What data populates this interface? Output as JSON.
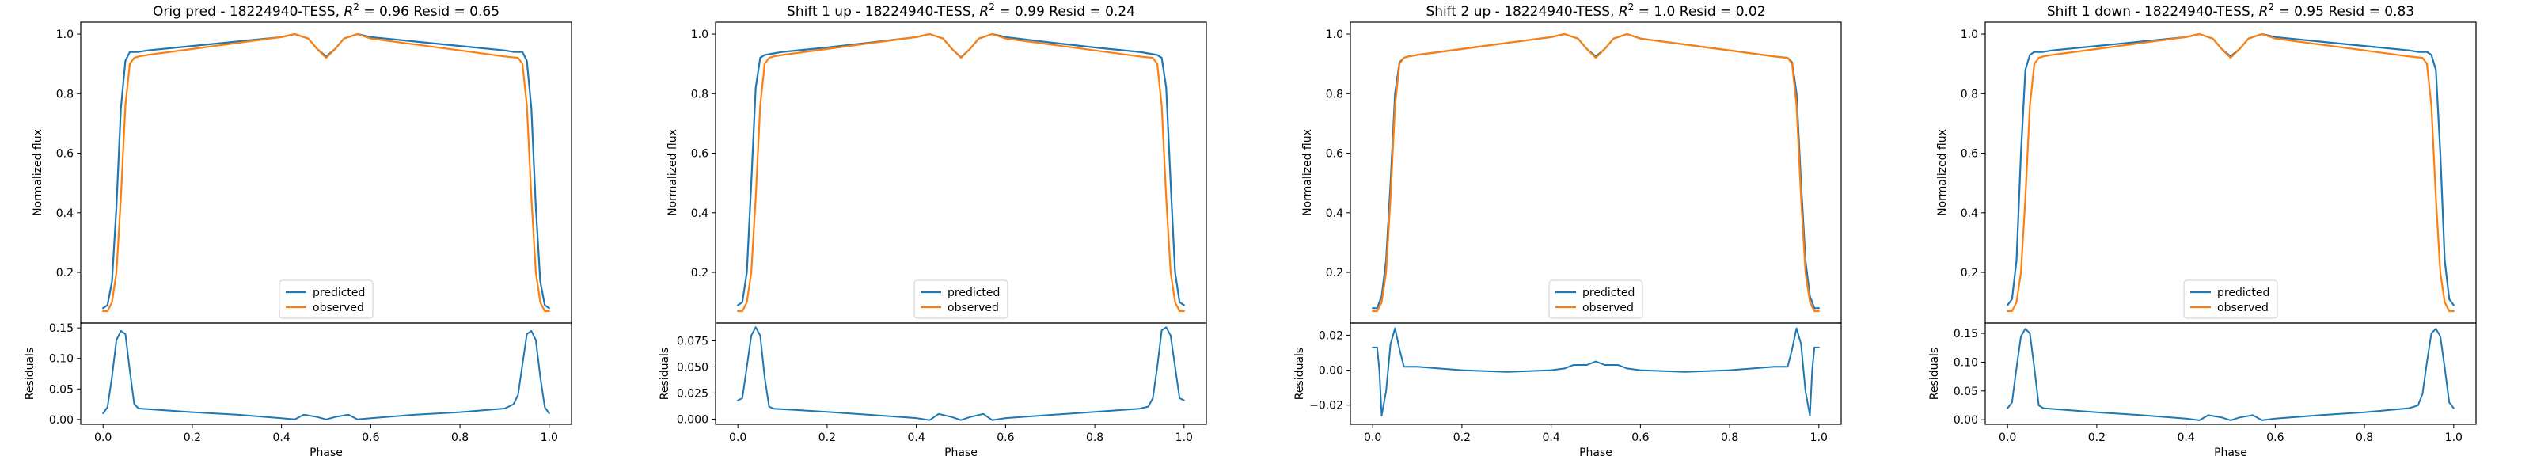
{
  "figure": {
    "panel_count": 4
  },
  "colors": {
    "predicted": "#1f77b4",
    "observed": "#ff7f0e",
    "background": "#ffffff",
    "axes": "#000000"
  },
  "chart_data": [
    {
      "type": "line",
      "title": "Orig pred - 18224940-TESS, $R^2 = 0.96$ Resid = 0.65",
      "title_parts": {
        "prefix": "Orig pred - 18224940-TESS, ",
        "r": "R",
        "sup": "2",
        "suffix": " = 0.96 Resid = 0.65"
      },
      "xlabel": "Phase",
      "ylabel_top": "Normalized flux",
      "ylabel_bottom": "Residuals",
      "xlim": [
        -0.05,
        1.05
      ],
      "ylim_top": [
        0.03,
        1.04
      ],
      "ylim_bottom": [
        -0.008,
        0.158
      ],
      "xticks": [
        "0.0",
        "0.2",
        "0.4",
        "0.6",
        "0.8",
        "1.0"
      ],
      "yticks_top": [
        "0.2",
        "0.4",
        "0.6",
        "0.8",
        "1.0"
      ],
      "yticks_bottom": [
        "0.00",
        "0.05",
        "0.10",
        "0.15"
      ],
      "legend": {
        "position": "lower center",
        "entries": [
          "predicted",
          "observed"
        ]
      },
      "series": [
        {
          "name": "predicted",
          "x": [
            0.0,
            0.01,
            0.02,
            0.03,
            0.04,
            0.05,
            0.06,
            0.08,
            0.1,
            0.2,
            0.3,
            0.4,
            0.43,
            0.46,
            0.48,
            0.5,
            0.52,
            0.54,
            0.57,
            0.6,
            0.7,
            0.8,
            0.9,
            0.92,
            0.94,
            0.95,
            0.96,
            0.97,
            0.98,
            0.99,
            1.0
          ],
          "y": [
            0.08,
            0.09,
            0.17,
            0.42,
            0.75,
            0.91,
            0.94,
            0.94,
            0.945,
            0.96,
            0.975,
            0.99,
            1.0,
            0.985,
            0.95,
            0.925,
            0.95,
            0.985,
            1.0,
            0.99,
            0.975,
            0.96,
            0.945,
            0.94,
            0.94,
            0.91,
            0.75,
            0.42,
            0.17,
            0.09,
            0.08
          ]
        },
        {
          "name": "observed",
          "x": [
            0.0,
            0.01,
            0.02,
            0.03,
            0.04,
            0.05,
            0.06,
            0.07,
            0.08,
            0.1,
            0.2,
            0.3,
            0.4,
            0.43,
            0.46,
            0.48,
            0.5,
            0.52,
            0.54,
            0.57,
            0.6,
            0.7,
            0.8,
            0.9,
            0.93,
            0.94,
            0.95,
            0.96,
            0.97,
            0.98,
            0.99,
            1.0
          ],
          "y": [
            0.07,
            0.07,
            0.1,
            0.2,
            0.45,
            0.76,
            0.9,
            0.92,
            0.925,
            0.93,
            0.95,
            0.97,
            0.99,
            1.0,
            0.985,
            0.95,
            0.92,
            0.95,
            0.985,
            1.0,
            0.985,
            0.965,
            0.945,
            0.925,
            0.92,
            0.9,
            0.76,
            0.45,
            0.2,
            0.1,
            0.07,
            0.07
          ]
        }
      ],
      "residuals": {
        "x": [
          0.0,
          0.01,
          0.02,
          0.03,
          0.04,
          0.05,
          0.06,
          0.07,
          0.08,
          0.2,
          0.3,
          0.4,
          0.43,
          0.45,
          0.48,
          0.5,
          0.52,
          0.55,
          0.57,
          0.6,
          0.7,
          0.8,
          0.9,
          0.92,
          0.93,
          0.94,
          0.95,
          0.96,
          0.97,
          0.98,
          0.99,
          1.0
        ],
        "y": [
          0.01,
          0.02,
          0.07,
          0.13,
          0.145,
          0.14,
          0.08,
          0.025,
          0.018,
          0.012,
          0.008,
          0.002,
          0.0,
          0.008,
          0.004,
          0.0,
          0.004,
          0.008,
          0.0,
          0.002,
          0.008,
          0.012,
          0.018,
          0.025,
          0.04,
          0.09,
          0.14,
          0.145,
          0.13,
          0.07,
          0.02,
          0.01
        ]
      }
    },
    {
      "type": "line",
      "title": "Shift 1 up - 18224940-TESS, $R^2 = 0.99$ Resid = 0.24",
      "title_parts": {
        "prefix": "Shift 1 up - 18224940-TESS, ",
        "r": "R",
        "sup": "2",
        "suffix": " = 0.99 Resid = 0.24"
      },
      "xlabel": "Phase",
      "ylabel_top": "Normalized flux",
      "ylabel_bottom": "Residuals",
      "xlim": [
        -0.05,
        1.05
      ],
      "ylim_top": [
        0.03,
        1.04
      ],
      "ylim_bottom": [
        -0.005,
        0.092
      ],
      "xticks": [
        "0.0",
        "0.2",
        "0.4",
        "0.6",
        "0.8",
        "1.0"
      ],
      "yticks_top": [
        "0.2",
        "0.4",
        "0.6",
        "0.8",
        "1.0"
      ],
      "yticks_bottom": [
        "0.000",
        "0.025",
        "0.050",
        "0.075"
      ],
      "legend": {
        "position": "lower center",
        "entries": [
          "predicted",
          "observed"
        ]
      },
      "series": [
        {
          "name": "predicted",
          "x": [
            0.0,
            0.01,
            0.02,
            0.03,
            0.04,
            0.05,
            0.06,
            0.08,
            0.1,
            0.2,
            0.3,
            0.4,
            0.43,
            0.46,
            0.48,
            0.5,
            0.52,
            0.54,
            0.57,
            0.6,
            0.7,
            0.8,
            0.9,
            0.92,
            0.94,
            0.95,
            0.96,
            0.97,
            0.98,
            0.99,
            1.0
          ],
          "y": [
            0.09,
            0.1,
            0.2,
            0.5,
            0.82,
            0.92,
            0.93,
            0.935,
            0.94,
            0.955,
            0.972,
            0.99,
            1.0,
            0.985,
            0.95,
            0.922,
            0.95,
            0.985,
            1.0,
            0.99,
            0.972,
            0.955,
            0.94,
            0.935,
            0.93,
            0.92,
            0.82,
            0.5,
            0.2,
            0.1,
            0.09
          ]
        },
        {
          "name": "observed",
          "x": [
            0.0,
            0.01,
            0.02,
            0.03,
            0.04,
            0.05,
            0.06,
            0.07,
            0.08,
            0.1,
            0.2,
            0.3,
            0.4,
            0.43,
            0.46,
            0.48,
            0.5,
            0.52,
            0.54,
            0.57,
            0.6,
            0.7,
            0.8,
            0.9,
            0.93,
            0.94,
            0.95,
            0.96,
            0.97,
            0.98,
            0.99,
            1.0
          ],
          "y": [
            0.07,
            0.07,
            0.1,
            0.2,
            0.45,
            0.76,
            0.9,
            0.92,
            0.925,
            0.93,
            0.95,
            0.97,
            0.99,
            1.0,
            0.985,
            0.95,
            0.92,
            0.95,
            0.985,
            1.0,
            0.985,
            0.965,
            0.945,
            0.925,
            0.92,
            0.9,
            0.76,
            0.45,
            0.2,
            0.1,
            0.07,
            0.07
          ]
        }
      ],
      "residuals": {
        "x": [
          0.0,
          0.01,
          0.02,
          0.03,
          0.04,
          0.05,
          0.06,
          0.07,
          0.08,
          0.2,
          0.3,
          0.4,
          0.43,
          0.45,
          0.48,
          0.5,
          0.52,
          0.55,
          0.57,
          0.6,
          0.7,
          0.8,
          0.9,
          0.92,
          0.93,
          0.94,
          0.95,
          0.96,
          0.97,
          0.98,
          0.99,
          1.0
        ],
        "y": [
          0.018,
          0.02,
          0.05,
          0.08,
          0.088,
          0.08,
          0.04,
          0.012,
          0.01,
          0.007,
          0.004,
          0.001,
          -0.001,
          0.005,
          0.002,
          -0.001,
          0.002,
          0.005,
          -0.001,
          0.001,
          0.004,
          0.007,
          0.01,
          0.012,
          0.02,
          0.05,
          0.085,
          0.088,
          0.08,
          0.05,
          0.02,
          0.018
        ]
      }
    },
    {
      "type": "line",
      "title": "Shift 2 up - 18224940-TESS, $R^2 = 1.0$ Resid = 0.02",
      "title_parts": {
        "prefix": "Shift 2 up - 18224940-TESS, ",
        "r": "R",
        "sup": "2",
        "suffix": " = 1.0 Resid = 0.02"
      },
      "xlabel": "Phase",
      "ylabel_top": "Normalized flux",
      "ylabel_bottom": "Residuals",
      "xlim": [
        -0.05,
        1.05
      ],
      "ylim_top": [
        0.03,
        1.04
      ],
      "ylim_bottom": [
        -0.031,
        0.027
      ],
      "xticks": [
        "0.0",
        "0.2",
        "0.4",
        "0.6",
        "0.8",
        "1.0"
      ],
      "yticks_top": [
        "0.2",
        "0.4",
        "0.6",
        "0.8",
        "1.0"
      ],
      "yticks_bottom": [
        "−0.02",
        "0.00",
        "0.02"
      ],
      "legend": {
        "position": "lower center",
        "entries": [
          "predicted",
          "observed"
        ]
      },
      "series": [
        {
          "name": "predicted",
          "x": [
            0.0,
            0.01,
            0.02,
            0.03,
            0.04,
            0.05,
            0.06,
            0.07,
            0.08,
            0.1,
            0.2,
            0.3,
            0.4,
            0.43,
            0.46,
            0.48,
            0.5,
            0.52,
            0.54,
            0.57,
            0.6,
            0.7,
            0.8,
            0.9,
            0.93,
            0.94,
            0.95,
            0.96,
            0.97,
            0.98,
            0.99,
            1.0
          ],
          "y": [
            0.08,
            0.08,
            0.12,
            0.24,
            0.5,
            0.8,
            0.905,
            0.92,
            0.925,
            0.93,
            0.95,
            0.97,
            0.99,
            1.0,
            0.985,
            0.95,
            0.925,
            0.95,
            0.985,
            1.0,
            0.985,
            0.965,
            0.945,
            0.925,
            0.92,
            0.905,
            0.8,
            0.5,
            0.24,
            0.12,
            0.08,
            0.08
          ]
        },
        {
          "name": "observed",
          "x": [
            0.0,
            0.01,
            0.02,
            0.03,
            0.04,
            0.05,
            0.06,
            0.07,
            0.08,
            0.1,
            0.2,
            0.3,
            0.4,
            0.43,
            0.46,
            0.48,
            0.5,
            0.52,
            0.54,
            0.57,
            0.6,
            0.7,
            0.8,
            0.9,
            0.93,
            0.94,
            0.95,
            0.96,
            0.97,
            0.98,
            0.99,
            1.0
          ],
          "y": [
            0.07,
            0.07,
            0.1,
            0.2,
            0.45,
            0.76,
            0.9,
            0.92,
            0.925,
            0.93,
            0.95,
            0.97,
            0.99,
            1.0,
            0.985,
            0.95,
            0.92,
            0.95,
            0.985,
            1.0,
            0.985,
            0.965,
            0.945,
            0.925,
            0.92,
            0.9,
            0.76,
            0.45,
            0.2,
            0.1,
            0.07,
            0.07
          ]
        }
      ],
      "residuals": {
        "x": [
          0.0,
          0.01,
          0.015,
          0.02,
          0.03,
          0.04,
          0.05,
          0.06,
          0.07,
          0.1,
          0.2,
          0.3,
          0.4,
          0.43,
          0.45,
          0.48,
          0.5,
          0.52,
          0.55,
          0.57,
          0.6,
          0.7,
          0.8,
          0.9,
          0.93,
          0.94,
          0.95,
          0.96,
          0.97,
          0.98,
          0.985,
          0.99,
          1.0
        ],
        "y": [
          0.013,
          0.013,
          0.0,
          -0.026,
          -0.012,
          0.015,
          0.024,
          0.012,
          0.002,
          0.002,
          0.0,
          -0.001,
          0.0,
          0.001,
          0.003,
          0.003,
          0.005,
          0.003,
          0.003,
          0.001,
          0.0,
          -0.001,
          0.0,
          0.002,
          0.002,
          0.012,
          0.024,
          0.015,
          -0.012,
          -0.026,
          0.0,
          0.013,
          0.013
        ]
      }
    },
    {
      "type": "line",
      "title": "Shift 1 down - 18224940-TESS, $R^2 = 0.95$ Resid = 0.83",
      "title_parts": {
        "prefix": "Shift 1 down - 18224940-TESS, ",
        "r": "R",
        "sup": "2",
        "suffix": " = 0.95 Resid = 0.83"
      },
      "xlabel": "Phase",
      "ylabel_top": "Normalized flux",
      "ylabel_bottom": "Residuals",
      "xlim": [
        -0.05,
        1.05
      ],
      "ylim_top": [
        0.03,
        1.04
      ],
      "ylim_bottom": [
        -0.008,
        0.168
      ],
      "xticks": [
        "0.0",
        "0.2",
        "0.4",
        "0.6",
        "0.8",
        "1.0"
      ],
      "yticks_top": [
        "0.2",
        "0.4",
        "0.6",
        "0.8",
        "1.0"
      ],
      "yticks_bottom": [
        "0.00",
        "0.05",
        "0.10",
        "0.15"
      ],
      "legend": {
        "position": "lower center",
        "entries": [
          "predicted",
          "observed"
        ]
      },
      "series": [
        {
          "name": "predicted",
          "x": [
            0.0,
            0.01,
            0.02,
            0.03,
            0.04,
            0.05,
            0.06,
            0.08,
            0.1,
            0.2,
            0.3,
            0.4,
            0.43,
            0.46,
            0.48,
            0.5,
            0.52,
            0.54,
            0.57,
            0.6,
            0.7,
            0.8,
            0.9,
            0.92,
            0.94,
            0.95,
            0.96,
            0.97,
            0.98,
            0.99,
            1.0
          ],
          "y": [
            0.09,
            0.11,
            0.24,
            0.6,
            0.88,
            0.93,
            0.94,
            0.94,
            0.945,
            0.96,
            0.975,
            0.99,
            1.0,
            0.985,
            0.95,
            0.925,
            0.95,
            0.985,
            1.0,
            0.99,
            0.975,
            0.96,
            0.945,
            0.94,
            0.94,
            0.93,
            0.88,
            0.6,
            0.24,
            0.11,
            0.09
          ]
        },
        {
          "name": "observed",
          "x": [
            0.0,
            0.01,
            0.02,
            0.03,
            0.04,
            0.05,
            0.06,
            0.07,
            0.08,
            0.1,
            0.2,
            0.3,
            0.4,
            0.43,
            0.46,
            0.48,
            0.5,
            0.52,
            0.54,
            0.57,
            0.6,
            0.7,
            0.8,
            0.9,
            0.93,
            0.94,
            0.95,
            0.96,
            0.97,
            0.98,
            0.99,
            1.0
          ],
          "y": [
            0.07,
            0.07,
            0.1,
            0.2,
            0.45,
            0.76,
            0.9,
            0.92,
            0.925,
            0.93,
            0.95,
            0.97,
            0.99,
            1.0,
            0.985,
            0.95,
            0.92,
            0.95,
            0.985,
            1.0,
            0.985,
            0.965,
            0.945,
            0.925,
            0.92,
            0.9,
            0.76,
            0.45,
            0.2,
            0.1,
            0.07,
            0.07
          ]
        }
      ],
      "residuals": {
        "x": [
          0.0,
          0.01,
          0.02,
          0.03,
          0.04,
          0.05,
          0.06,
          0.07,
          0.08,
          0.2,
          0.3,
          0.4,
          0.43,
          0.45,
          0.48,
          0.5,
          0.52,
          0.55,
          0.57,
          0.6,
          0.7,
          0.8,
          0.9,
          0.92,
          0.93,
          0.94,
          0.95,
          0.96,
          0.97,
          0.98,
          0.99,
          1.0
        ],
        "y": [
          0.02,
          0.03,
          0.09,
          0.145,
          0.158,
          0.15,
          0.09,
          0.025,
          0.02,
          0.013,
          0.008,
          0.002,
          -0.001,
          0.008,
          0.004,
          -0.001,
          0.004,
          0.008,
          -0.001,
          0.002,
          0.008,
          0.013,
          0.02,
          0.025,
          0.045,
          0.1,
          0.15,
          0.158,
          0.145,
          0.09,
          0.03,
          0.02
        ]
      }
    }
  ]
}
